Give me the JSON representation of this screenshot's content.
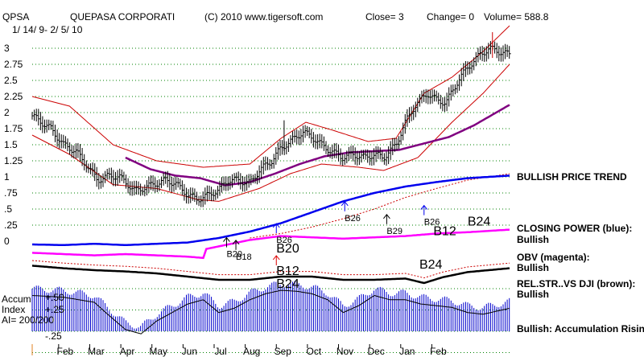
{
  "header": {
    "ticker": "QPSA",
    "company": "QUEPASA CORPORATI",
    "copyright": "(C) 2010 www.tigersoft.com",
    "close": "Close=  3",
    "change": "Change= 0",
    "volume": "Volume= 588.8",
    "date_range": "1/ 14/ 9- 2/ 5/ 10"
  },
  "panel_labels": {
    "price_trend": "BULLISH PRICE TREND",
    "closing_power": "CLOSING POWER (blue):",
    "closing_power_status": "Bullish",
    "obv": "OBV (magenta):",
    "obv_status": "Bullish",
    "relstr": "REL.STR..VS DJI (brown):",
    "relstr_status": "Bullish",
    "accum_line1": "Accum",
    "accum_line2": "Index",
    "accum_line3": "AI= 200/200",
    "accum_status": "Bullish: Accumulation Rising",
    "accum_tick_top": "+.50",
    "accum_tick_mid": "+.25",
    "accum_tick_bot": "-.25"
  },
  "colors": {
    "price_bars": "#000000",
    "bands": "#cc0000",
    "moving_average": "#800080",
    "closing_power": "#0000ee",
    "obv": "#ff00ff",
    "relstr": "#000000",
    "relstr_dotted": "#cc0000",
    "accum_bars": "#0000cc",
    "grid": "#008000",
    "buy_arrow_blue": "#0000ee",
    "buy_arrow_red": "#dd0000"
  },
  "chart_data": {
    "type": "line",
    "title": "QUEPASA CORPORATI",
    "x_ticks": [
      "Feb",
      "Mar",
      "Apr",
      "May",
      "Jun",
      "Jul",
      "Aug",
      "Sep",
      "Oct",
      "Nov",
      "Dec",
      "Jan",
      "Feb"
    ],
    "y_ticks": [
      "3",
      "2.75",
      "2.5",
      "2.25",
      "2",
      "1.75",
      "1.5",
      "1.25",
      "1",
      ".75",
      ".5",
      ".25",
      "0"
    ],
    "y_tick_values": [
      3,
      2.75,
      2.5,
      2.25,
      2,
      1.75,
      1.5,
      1.25,
      1,
      0.75,
      0.5,
      0.25,
      0
    ],
    "ylim": [
      -0.1,
      3.15
    ],
    "grid": true,
    "price_close": [
      [
        0.0,
        1.95
      ],
      [
        0.3,
        1.85
      ],
      [
        0.6,
        1.75
      ],
      [
        1.0,
        1.5
      ],
      [
        1.4,
        1.4
      ],
      [
        1.8,
        1.15
      ],
      [
        2.1,
        0.95
      ],
      [
        2.5,
        1.02
      ],
      [
        2.8,
        1.0
      ],
      [
        3.0,
        0.92
      ],
      [
        3.3,
        0.78
      ],
      [
        3.7,
        0.85
      ],
      [
        4.0,
        0.9
      ],
      [
        4.3,
        0.95
      ],
      [
        4.6,
        0.9
      ],
      [
        5.0,
        0.72
      ],
      [
        5.3,
        0.65
      ],
      [
        5.6,
        0.7
      ],
      [
        6.0,
        0.8
      ],
      [
        6.3,
        0.95
      ],
      [
        6.6,
        0.95
      ],
      [
        7.0,
        0.9
      ],
      [
        7.3,
        1.1
      ],
      [
        7.7,
        1.25
      ],
      [
        8.0,
        1.45
      ],
      [
        8.3,
        1.55
      ],
      [
        8.7,
        1.7
      ],
      [
        9.0,
        1.62
      ],
      [
        9.3,
        1.5
      ],
      [
        9.6,
        1.4
      ],
      [
        10.0,
        1.3
      ],
      [
        10.3,
        1.35
      ],
      [
        10.7,
        1.3
      ],
      [
        11.0,
        1.35
      ],
      [
        11.3,
        1.3
      ],
      [
        11.7,
        1.5
      ],
      [
        12.0,
        1.85
      ],
      [
        12.3,
        2.1
      ],
      [
        12.7,
        2.3
      ],
      [
        13.0,
        2.2
      ],
      [
        13.3,
        2.15
      ],
      [
        13.7,
        2.5
      ],
      [
        14.0,
        2.7
      ],
      [
        14.4,
        2.9
      ],
      [
        14.7,
        3.0
      ],
      [
        15.0,
        2.95
      ],
      [
        15.35,
        2.9
      ]
    ],
    "upper_band": [
      [
        0.0,
        2.25
      ],
      [
        1.2,
        2.1
      ],
      [
        2.6,
        1.5
      ],
      [
        4.0,
        1.25
      ],
      [
        5.5,
        1.15
      ],
      [
        7.0,
        1.2
      ],
      [
        8.0,
        1.6
      ],
      [
        8.8,
        1.85
      ],
      [
        9.7,
        1.72
      ],
      [
        10.8,
        1.55
      ],
      [
        11.7,
        1.6
      ],
      [
        12.6,
        2.3
      ],
      [
        13.5,
        2.55
      ],
      [
        14.5,
        2.95
      ],
      [
        15.35,
        3.35
      ]
    ],
    "lower_band": [
      [
        0.0,
        1.65
      ],
      [
        1.2,
        1.35
      ],
      [
        2.6,
        0.88
      ],
      [
        4.0,
        0.82
      ],
      [
        5.3,
        0.65
      ],
      [
        6.0,
        0.62
      ],
      [
        7.3,
        0.82
      ],
      [
        8.3,
        1.05
      ],
      [
        9.3,
        1.2
      ],
      [
        10.5,
        1.15
      ],
      [
        11.3,
        1.1
      ],
      [
        12.4,
        1.3
      ],
      [
        13.5,
        1.85
      ],
      [
        14.5,
        2.3
      ],
      [
        15.35,
        2.75
      ]
    ],
    "moving_average": [
      [
        3.0,
        1.3
      ],
      [
        3.8,
        1.12
      ],
      [
        4.6,
        1.02
      ],
      [
        5.4,
        0.98
      ],
      [
        6.2,
        0.87
      ],
      [
        7.0,
        0.92
      ],
      [
        7.8,
        1.05
      ],
      [
        8.6,
        1.2
      ],
      [
        9.4,
        1.32
      ],
      [
        10.2,
        1.38
      ],
      [
        11.0,
        1.4
      ],
      [
        11.8,
        1.42
      ],
      [
        12.6,
        1.52
      ],
      [
        13.4,
        1.62
      ],
      [
        14.2,
        1.8
      ],
      [
        15.35,
        2.12
      ]
    ],
    "closing_power": [
      [
        0.0,
        -0.05
      ],
      [
        1.0,
        -0.06
      ],
      [
        2.0,
        -0.04
      ],
      [
        3.0,
        -0.06
      ],
      [
        4.0,
        -0.04
      ],
      [
        5.0,
        -0.02
      ],
      [
        6.0,
        0.05
      ],
      [
        7.0,
        0.15
      ],
      [
        8.0,
        0.28
      ],
      [
        9.0,
        0.45
      ],
      [
        10.0,
        0.62
      ],
      [
        11.0,
        0.75
      ],
      [
        12.0,
        0.85
      ],
      [
        13.0,
        0.92
      ],
      [
        14.0,
        0.98
      ],
      [
        15.35,
        1.02
      ]
    ],
    "price_trend_dotted": [
      [
        7.0,
        0.05
      ],
      [
        8.0,
        0.12
      ],
      [
        9.0,
        0.22
      ],
      [
        10.0,
        0.35
      ],
      [
        11.0,
        0.5
      ],
      [
        12.0,
        0.68
      ],
      [
        13.0,
        0.82
      ],
      [
        14.0,
        0.95
      ],
      [
        15.35,
        1.05
      ]
    ],
    "obv": [
      [
        0.0,
        -0.18
      ],
      [
        1.0,
        -0.2
      ],
      [
        2.0,
        -0.22
      ],
      [
        3.0,
        -0.2
      ],
      [
        4.0,
        -0.22
      ],
      [
        5.0,
        -0.24
      ],
      [
        5.5,
        -0.26
      ],
      [
        5.6,
        -0.12
      ],
      [
        6.0,
        -0.08
      ],
      [
        7.0,
        0.02
      ],
      [
        8.0,
        0.08
      ],
      [
        9.0,
        0.06
      ],
      [
        10.0,
        0.04
      ],
      [
        11.0,
        0.06
      ],
      [
        12.0,
        0.08
      ],
      [
        13.0,
        0.12
      ],
      [
        14.0,
        0.14
      ],
      [
        15.35,
        0.18
      ]
    ],
    "relstr": [
      [
        0.0,
        -0.38
      ],
      [
        1.0,
        -0.42
      ],
      [
        2.0,
        -0.45
      ],
      [
        3.0,
        -0.47
      ],
      [
        4.0,
        -0.5
      ],
      [
        5.0,
        -0.55
      ],
      [
        6.0,
        -0.6
      ],
      [
        7.0,
        -0.6
      ],
      [
        8.0,
        -0.55
      ],
      [
        9.0,
        -0.55
      ],
      [
        10.0,
        -0.6
      ],
      [
        11.0,
        -0.6
      ],
      [
        12.0,
        -0.58
      ],
      [
        12.6,
        -0.65
      ],
      [
        13.2,
        -0.56
      ],
      [
        14.0,
        -0.48
      ],
      [
        15.35,
        -0.42
      ]
    ],
    "accumulation_index": [
      [
        0.0,
        0.5
      ],
      [
        1.0,
        0.48
      ],
      [
        2.0,
        0.42
      ],
      [
        2.3,
        0.32
      ],
      [
        3.0,
        0.1
      ],
      [
        3.5,
        0.05
      ],
      [
        4.0,
        0.2
      ],
      [
        4.5,
        0.3
      ],
      [
        5.0,
        0.4
      ],
      [
        5.5,
        0.45
      ],
      [
        6.0,
        0.3
      ],
      [
        6.5,
        0.35
      ],
      [
        7.0,
        0.45
      ],
      [
        7.5,
        0.52
      ],
      [
        8.0,
        0.56
      ],
      [
        8.5,
        0.55
      ],
      [
        9.0,
        0.52
      ],
      [
        9.5,
        0.45
      ],
      [
        10.0,
        0.3
      ],
      [
        10.5,
        0.38
      ],
      [
        11.0,
        0.5
      ],
      [
        11.5,
        0.45
      ],
      [
        12.0,
        0.45
      ],
      [
        12.5,
        0.4
      ],
      [
        13.0,
        0.38
      ],
      [
        13.5,
        0.36
      ],
      [
        14.0,
        0.3
      ],
      [
        14.5,
        0.28
      ],
      [
        15.35,
        0.35
      ]
    ],
    "signals": [
      {
        "label": "B26",
        "x": 10.05,
        "y": 0.44,
        "color": "blue",
        "arrow": "up"
      },
      {
        "label": "B29",
        "x": 11.4,
        "y": 0.24,
        "color": "black",
        "arrow": "up"
      },
      {
        "label": "B26",
        "x": 12.6,
        "y": 0.38,
        "color": "blue",
        "arrow": "up"
      },
      {
        "label": "B12",
        "x": 12.9,
        "y": 0.22,
        "color": "black",
        "arrow": "none",
        "size": "big"
      },
      {
        "label": "B24",
        "x": 14.0,
        "y": 0.37,
        "color": "black",
        "arrow": "none",
        "size": "big"
      },
      {
        "label": "B26",
        "x": 7.85,
        "y": 0.1,
        "color": "blue",
        "arrow": "up"
      },
      {
        "label": "B20",
        "x": 7.85,
        "y": -0.05,
        "color": "black",
        "arrow": "none",
        "size": "big"
      },
      {
        "label": "B20",
        "x": 6.25,
        "y": -0.12,
        "color": "black",
        "arrow": "up"
      },
      {
        "label": "B18",
        "x": 6.55,
        "y": -0.16,
        "color": "black",
        "arrow": "up"
      },
      {
        "label": "B12",
        "x": 7.85,
        "y": -0.4,
        "color": "red",
        "arrow": "up",
        "size": "big"
      },
      {
        "label": "B24",
        "x": 7.85,
        "y": -0.6,
        "color": "black",
        "arrow": "none",
        "size": "big"
      },
      {
        "label": "B24",
        "x": 12.45,
        "y": -0.3,
        "color": "black",
        "arrow": "none",
        "size": "big"
      }
    ]
  }
}
